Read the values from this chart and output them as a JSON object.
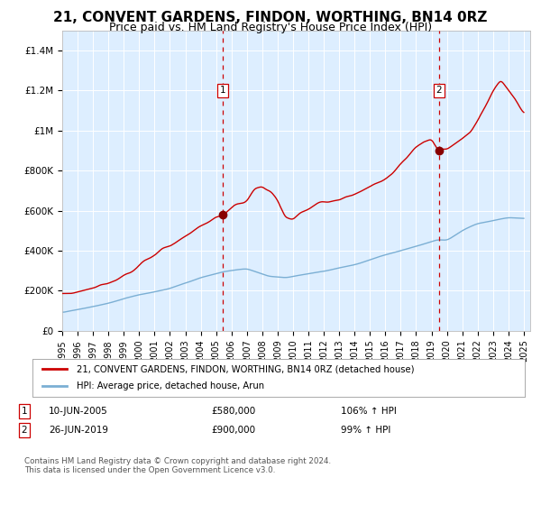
{
  "title": "21, CONVENT GARDENS, FINDON, WORTHING, BN14 0RZ",
  "subtitle": "Price paid vs. HM Land Registry's House Price Index (HPI)",
  "title_fontsize": 11,
  "subtitle_fontsize": 9,
  "red_label": "21, CONVENT GARDENS, FINDON, WORTHING, BN14 0RZ (detached house)",
  "blue_label": "HPI: Average price, detached house, Arun",
  "sale1_date": "2005-06-10",
  "sale1_price": 580000,
  "sale1_label": "10-JUN-2005",
  "sale1_text": "£580,000",
  "sale1_hpi": "106% ↑ HPI",
  "sale2_date": "2019-06-26",
  "sale2_price": 900000,
  "sale2_label": "26-JUN-2019",
  "sale2_text": "£900,000",
  "sale2_hpi": "99% ↑ HPI",
  "ylabel_ticks": [
    "£0",
    "£200K",
    "£400K",
    "£600K",
    "£800K",
    "£1M",
    "£1.2M",
    "£1.4M"
  ],
  "ytick_values": [
    0,
    200000,
    400000,
    600000,
    800000,
    1000000,
    1200000,
    1400000
  ],
  "ylim": [
    0,
    1500000
  ],
  "xtick_years": [
    1995,
    1996,
    1997,
    1998,
    1999,
    2000,
    2001,
    2002,
    2003,
    2004,
    2005,
    2006,
    2007,
    2008,
    2009,
    2010,
    2011,
    2012,
    2013,
    2014,
    2015,
    2016,
    2017,
    2018,
    2019,
    2020,
    2021,
    2022,
    2023,
    2024,
    2025
  ],
  "red_color": "#cc0000",
  "blue_color": "#7bafd4",
  "bg_color": "#ddeeff",
  "grid_color": "#ffffff",
  "marker_color": "#880000",
  "dashed_color": "#cc0000",
  "footer": "Contains HM Land Registry data © Crown copyright and database right 2024.\nThis data is licensed under the Open Government Licence v3.0."
}
